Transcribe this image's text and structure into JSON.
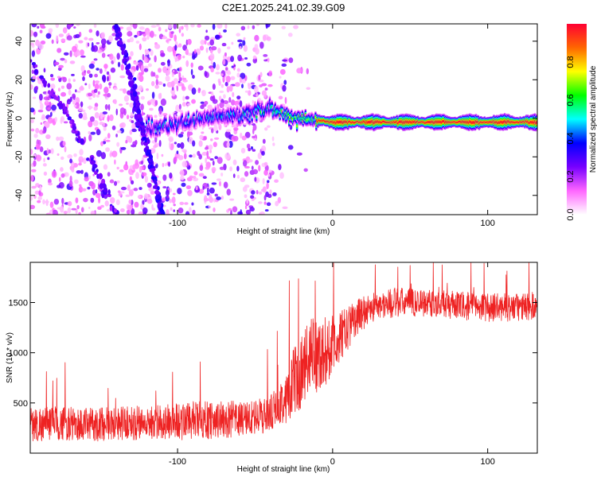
{
  "title": "C2E1.2025.241.02.39.G09",
  "chart_data": [
    {
      "type": "heatmap",
      "title": "C2E1.2025.241.02.39.G09",
      "xlabel": "Height of straight line (km)",
      "ylabel": "Frequency (Hz)",
      "xlim": [
        -195,
        132
      ],
      "ylim": [
        -50,
        49
      ],
      "xticks": [
        -100,
        0,
        100
      ],
      "yticks": [
        -40,
        -20,
        0,
        20,
        40
      ],
      "colorbar": {
        "label": "Normalized spectral amplitude",
        "range": [
          0.0,
          1.0
        ],
        "ticks": [
          "0.0",
          "0.2",
          "0.4",
          "0.6",
          "0.8"
        ],
        "tick_values": [
          0.0,
          0.2,
          0.4,
          0.6,
          0.8
        ],
        "colors": [
          "#ffffff",
          "#ff66ff",
          "#7700ff",
          "#0000ff",
          "#00ffff",
          "#00ff00",
          "#ffff00",
          "#ff6600",
          "#ff0033"
        ]
      },
      "features": {
        "main_signal_track": [
          [
            -120,
            -5
          ],
          [
            -100,
            -3
          ],
          [
            -80,
            0
          ],
          [
            -60,
            2
          ],
          [
            -40,
            5
          ],
          [
            -25,
            0
          ],
          [
            -10,
            -1
          ],
          [
            0,
            -2
          ],
          [
            20,
            -2
          ],
          [
            60,
            -2
          ],
          [
            100,
            -2
          ],
          [
            132,
            -2
          ]
        ],
        "diagonal_artifact": [
          [
            -140,
            49
          ],
          [
            -130,
            20
          ],
          [
            -125,
            0
          ],
          [
            -118,
            -20
          ],
          [
            -110,
            -50
          ]
        ],
        "secondary_diagonal": [
          [
            -195,
            30
          ],
          [
            -170,
            0
          ],
          [
            -150,
            -30
          ],
          [
            -140,
            -50
          ]
        ]
      }
    },
    {
      "type": "line",
      "xlabel": "Height of straight line (km)",
      "ylabel": "SNR (10 * v/v)",
      "xlim": [
        -195,
        132
      ],
      "ylim": [
        0,
        1900
      ],
      "xticks": [
        -100,
        0,
        100
      ],
      "yticks": [
        500,
        1000,
        1500
      ],
      "series": [
        {
          "name": "SNR",
          "color": "#ee2222",
          "x": [
            -195,
            -180,
            -160,
            -140,
            -120,
            -100,
            -80,
            -60,
            -45,
            -35,
            -25,
            -15,
            -5,
            5,
            15,
            25,
            40,
            60,
            80,
            100,
            120,
            132
          ],
          "y": [
            280,
            300,
            280,
            300,
            300,
            320,
            330,
            340,
            360,
            450,
            700,
            950,
            1000,
            1150,
            1350,
            1450,
            1500,
            1500,
            1470,
            1450,
            1450,
            1470
          ],
          "noise": [
            180,
            170,
            170,
            170,
            170,
            190,
            190,
            180,
            170,
            200,
            350,
            400,
            350,
            260,
            180,
            150,
            150,
            140,
            140,
            140,
            140,
            140
          ]
        }
      ]
    }
  ]
}
